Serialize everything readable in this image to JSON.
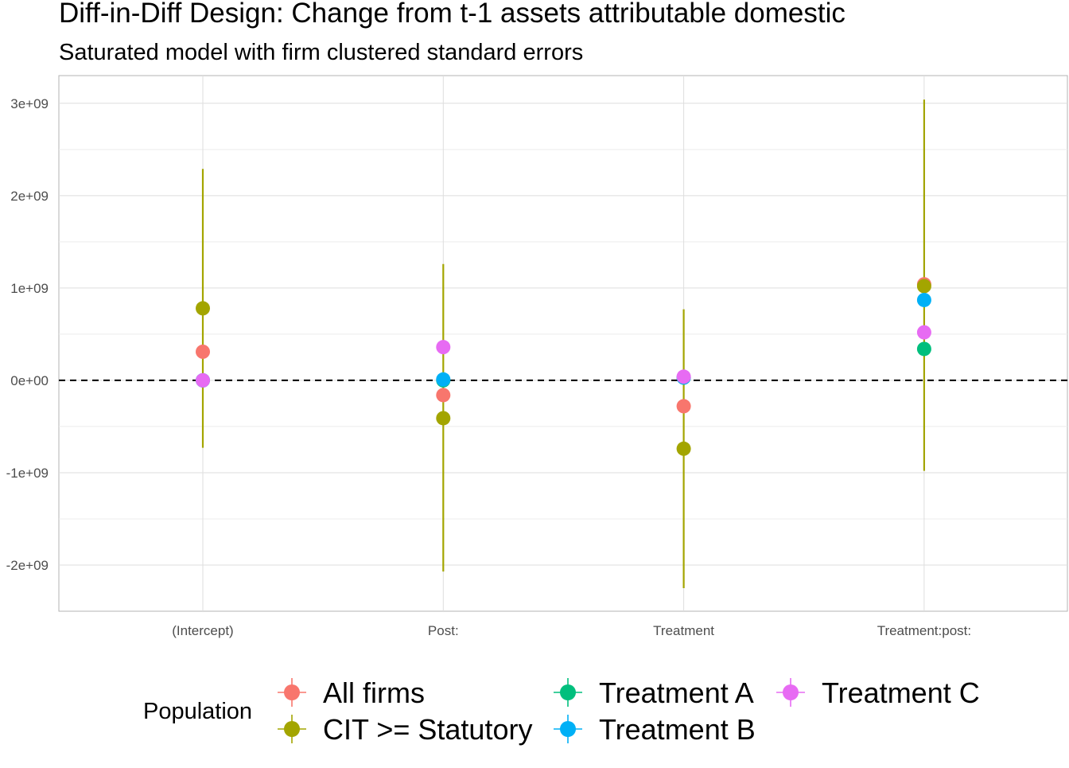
{
  "chart_data": {
    "type": "scatter",
    "title": "Diff-in-Diff Design: Change from t-1 assets attributable domestic",
    "subtitle": "Saturated model with firm clustered standard errors",
    "xlabel": "",
    "ylabel": "",
    "categories": [
      "(Intercept)",
      "Post:",
      "Treatment",
      "Treatment:post:"
    ],
    "ylim": [
      -2500000000,
      3300000000
    ],
    "yticks": [
      -2000000000,
      -1000000000,
      0,
      1000000000,
      2000000000,
      3000000000
    ],
    "ytick_labels": [
      "-2e+09",
      "-1e+09",
      "0e+00",
      "1e+09",
      "2e+09",
      "3e+09"
    ],
    "reference_line": 0,
    "grid": true,
    "legend": {
      "title": "Population",
      "position": "bottom",
      "entries": [
        "All firms",
        "CIT >= Statutory",
        "Treatment A",
        "Treatment B",
        "Treatment C"
      ]
    },
    "series": [
      {
        "name": "All firms",
        "color": "#F8766D",
        "values": [
          310000000,
          -160000000,
          -280000000,
          1040000000
        ],
        "lower": [
          null,
          null,
          null,
          null
        ],
        "upper": [
          null,
          null,
          null,
          null
        ]
      },
      {
        "name": "CIT >= Statutory",
        "color": "#A3A500",
        "values": [
          780000000,
          -410000000,
          -740000000,
          1020000000
        ],
        "lower": [
          -730000000,
          -2070000000,
          -2250000000,
          -980000000
        ],
        "upper": [
          2290000000,
          1260000000,
          770000000,
          3040000000
        ]
      },
      {
        "name": "Treatment A",
        "color": "#00BF7D",
        "values": [
          0,
          0,
          30000000,
          340000000
        ],
        "lower": [
          null,
          null,
          null,
          null
        ],
        "upper": [
          null,
          null,
          null,
          null
        ]
      },
      {
        "name": "Treatment B",
        "color": "#00B0F6",
        "values": [
          0,
          10000000,
          30000000,
          870000000
        ],
        "lower": [
          null,
          null,
          null,
          null
        ],
        "upper": [
          null,
          null,
          null,
          null
        ]
      },
      {
        "name": "Treatment C",
        "color": "#E76BF3",
        "values": [
          0,
          360000000,
          40000000,
          520000000
        ],
        "lower": [
          null,
          null,
          null,
          null
        ],
        "upper": [
          null,
          null,
          null,
          null
        ]
      }
    ]
  }
}
